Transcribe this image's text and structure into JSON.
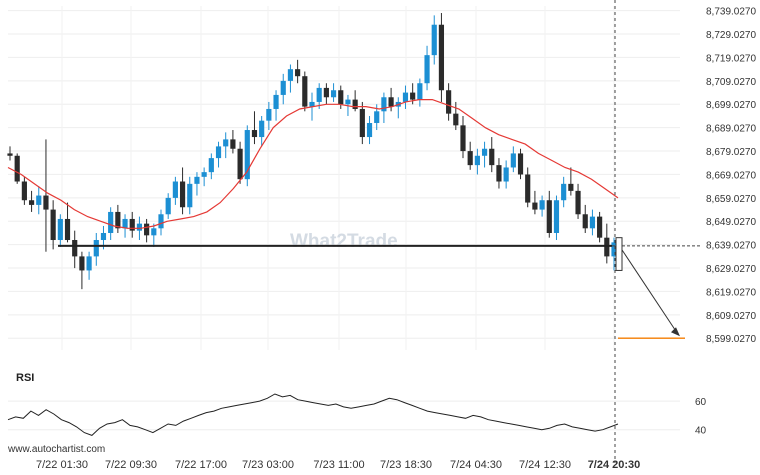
{
  "chart_data": {
    "type": "candlestick",
    "instrument_price_axis": {
      "ticks": [
        "8,739.0270",
        "8,729.0270",
        "8,719.0270",
        "8,709.0270",
        "8,699.0270",
        "8,689.0270",
        "8,679.0270",
        "8,669.0270",
        "8,659.0270",
        "8,649.0270",
        "8,639.0270",
        "8,629.0270",
        "8,619.0270",
        "8,609.0270",
        "8,599.0270"
      ],
      "range": [
        8594,
        8741
      ]
    },
    "x_ticks": [
      "7/22 01:30",
      "7/22 09:30",
      "7/22 17:00",
      "7/23 03:00",
      "7/23 11:00",
      "7/23 18:30",
      "7/24 04:30",
      "7/24 12:30",
      "7/24 20:30"
    ],
    "support_level": 8638.5,
    "target_level": 8599.027,
    "candles": [
      [
        8678,
        8681,
        8675,
        8677
      ],
      [
        8677,
        8678,
        8665,
        8666
      ],
      [
        8666,
        8668,
        8656,
        8658
      ],
      [
        8658,
        8662,
        8653,
        8656
      ],
      [
        8656,
        8664,
        8652,
        8660
      ],
      [
        8660,
        8684,
        8636,
        8654
      ],
      [
        8654,
        8658,
        8637,
        8641
      ],
      [
        8641,
        8652,
        8638,
        8650
      ],
      [
        8650,
        8657,
        8640,
        8641
      ],
      [
        8641,
        8645,
        8629,
        8634
      ],
      [
        8634,
        8636,
        8620,
        8628
      ],
      [
        8628,
        8636,
        8624,
        8634
      ],
      [
        8634,
        8644,
        8630,
        8641
      ],
      [
        8641,
        8647,
        8637,
        8644
      ],
      [
        8644,
        8655,
        8641,
        8653
      ],
      [
        8653,
        8656,
        8644,
        8646
      ],
      [
        8646,
        8652,
        8642,
        8650
      ],
      [
        8650,
        8653,
        8642,
        8645
      ],
      [
        8645,
        8651,
        8641,
        8648
      ],
      [
        8648,
        8650,
        8640,
        8643
      ],
      [
        8643,
        8648,
        8638,
        8646
      ],
      [
        8646,
        8654,
        8643,
        8652
      ],
      [
        8652,
        8661,
        8650,
        8659
      ],
      [
        8659,
        8668,
        8656,
        8666
      ],
      [
        8666,
        8672,
        8652,
        8655
      ],
      [
        8655,
        8668,
        8652,
        8665
      ],
      [
        8665,
        8670,
        8660,
        8668
      ],
      [
        8668,
        8672,
        8664,
        8670
      ],
      [
        8670,
        8678,
        8667,
        8676
      ],
      [
        8676,
        8683,
        8672,
        8681
      ],
      [
        8681,
        8687,
        8676,
        8684
      ],
      [
        8684,
        8688,
        8678,
        8680
      ],
      [
        8680,
        8683,
        8665,
        8667
      ],
      [
        8667,
        8690,
        8664,
        8688
      ],
      [
        8688,
        8696,
        8682,
        8685
      ],
      [
        8685,
        8694,
        8681,
        8692
      ],
      [
        8692,
        8700,
        8688,
        8697
      ],
      [
        8697,
        8705,
        8692,
        8703
      ],
      [
        8703,
        8712,
        8699,
        8709
      ],
      [
        8709,
        8716,
        8704,
        8714
      ],
      [
        8714,
        8718,
        8708,
        8711
      ],
      [
        8711,
        8713,
        8696,
        8698
      ],
      [
        8698,
        8704,
        8692,
        8700
      ],
      [
        8700,
        8708,
        8697,
        8706
      ],
      [
        8706,
        8708,
        8699,
        8702
      ],
      [
        8702,
        8708,
        8700,
        8705
      ],
      [
        8705,
        8707,
        8697,
        8699
      ],
      [
        8699,
        8703,
        8694,
        8701
      ],
      [
        8701,
        8705,
        8696,
        8697
      ],
      [
        8697,
        8700,
        8682,
        8685
      ],
      [
        8685,
        8694,
        8682,
        8691
      ],
      [
        8691,
        8699,
        8688,
        8696
      ],
      [
        8696,
        8704,
        8691,
        8702
      ],
      [
        8702,
        8706,
        8696,
        8698
      ],
      [
        8698,
        8702,
        8693,
        8700
      ],
      [
        8700,
        8707,
        8697,
        8704
      ],
      [
        8704,
        8708,
        8699,
        8701
      ],
      [
        8701,
        8710,
        8698,
        8708
      ],
      [
        8708,
        8724,
        8705,
        8720
      ],
      [
        8720,
        8737,
        8716,
        8733
      ],
      [
        8733,
        8738,
        8700,
        8705
      ],
      [
        8705,
        8708,
        8692,
        8695
      ],
      [
        8695,
        8700,
        8688,
        8690
      ],
      [
        8690,
        8694,
        8676,
        8679
      ],
      [
        8679,
        8683,
        8671,
        8673
      ],
      [
        8673,
        8680,
        8669,
        8677
      ],
      [
        8677,
        8683,
        8672,
        8680
      ],
      [
        8680,
        8685,
        8670,
        8673
      ],
      [
        8673,
        8676,
        8663,
        8666
      ],
      [
        8666,
        8675,
        8663,
        8672
      ],
      [
        8672,
        8681,
        8670,
        8678
      ],
      [
        8678,
        8680,
        8667,
        8669
      ],
      [
        8669,
        8672,
        8655,
        8657
      ],
      [
        8657,
        8662,
        8652,
        8654
      ],
      [
        8654,
        8660,
        8651,
        8658
      ],
      [
        8658,
        8662,
        8642,
        8644
      ],
      [
        8644,
        8660,
        8641,
        8658
      ],
      [
        8658,
        8668,
        8655,
        8665
      ],
      [
        8665,
        8672,
        8660,
        8662
      ],
      [
        8662,
        8665,
        8650,
        8652
      ],
      [
        8652,
        8656,
        8644,
        8646
      ],
      [
        8646,
        8654,
        8643,
        8651
      ],
      [
        8651,
        8653,
        8640,
        8642
      ],
      [
        8642,
        8648,
        8631,
        8634
      ],
      [
        8634,
        8642,
        8628,
        8640
      ]
    ],
    "ma_line": [
      8672,
      8669,
      8665,
      8661,
      8658,
      8654,
      8651,
      8649,
      8647,
      8646,
      8646,
      8647,
      8649,
      8650,
      8651,
      8653,
      8657,
      8663,
      8670,
      8680,
      8689,
      8694,
      8697,
      8698,
      8699,
      8699,
      8698,
      8698,
      8697,
      8698,
      8700,
      8701,
      8701,
      8699,
      8697,
      8693,
      8689,
      8686,
      8684,
      8682,
      8678,
      8675,
      8672,
      8670,
      8667,
      8663,
      8659
    ],
    "rsi": {
      "title": "RSI",
      "ticks": [
        "60",
        "40"
      ],
      "range": [
        30,
        72
      ],
      "values": [
        47,
        49,
        48,
        53,
        50,
        54,
        51,
        47,
        45,
        42,
        38,
        36,
        41,
        44,
        45,
        47,
        43,
        42,
        40,
        38,
        41,
        44,
        43,
        46,
        48,
        50,
        52,
        53,
        55,
        56,
        57,
        58,
        59,
        60,
        62,
        65,
        63,
        64,
        61,
        60,
        59,
        58,
        57,
        58,
        56,
        55,
        56,
        57,
        58,
        60,
        62,
        61,
        59,
        57,
        55,
        53,
        52,
        51,
        50,
        49,
        48,
        50,
        49,
        47,
        46,
        45,
        44,
        43,
        42,
        41,
        40,
        41,
        43,
        44,
        42,
        41,
        40,
        39,
        40,
        42,
        44
      ]
    }
  },
  "watermark": "What2Trade",
  "credit": "www.autochartist.com",
  "colors": {
    "up": "#1c8fd3",
    "down": "#2b2b2b",
    "ma": "#e53935",
    "target": "#f57c00",
    "line": "#222222"
  }
}
